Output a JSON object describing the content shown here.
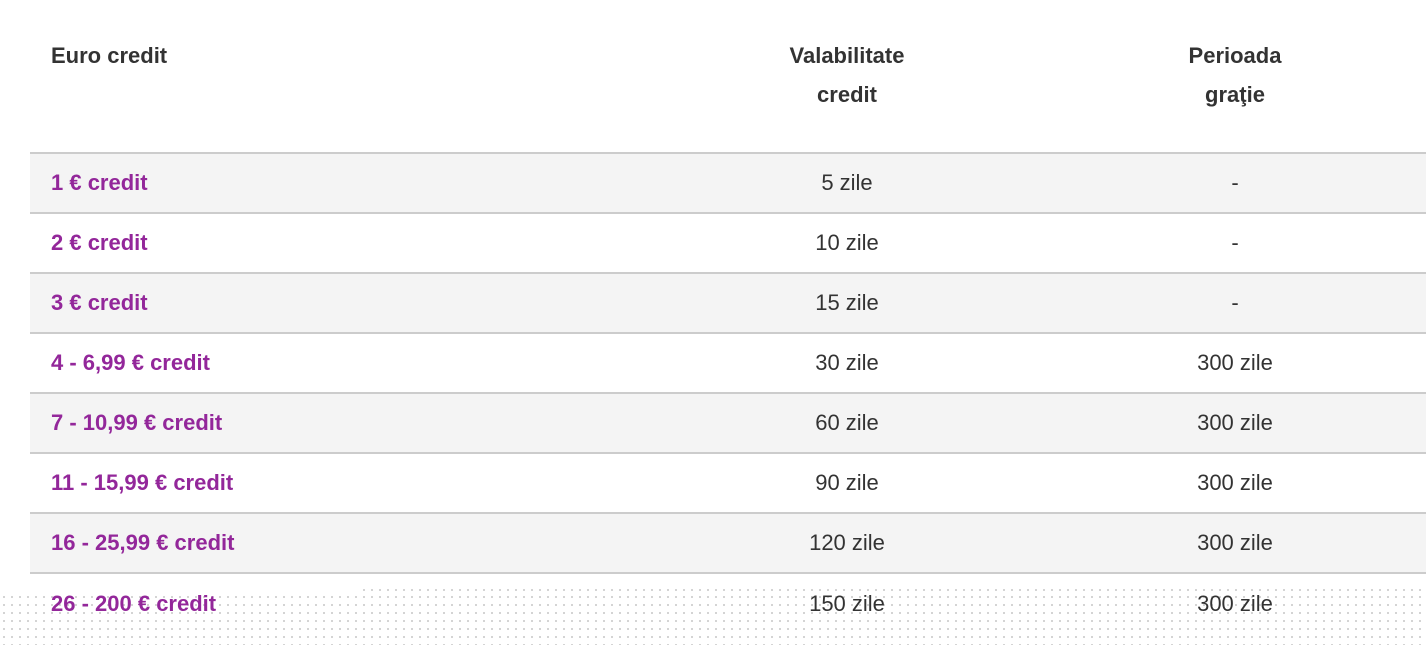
{
  "table": {
    "headers": [
      {
        "line1": "Euro credit",
        "line2": ""
      },
      {
        "line1": "Valabilitate",
        "line2": "credit"
      },
      {
        "line1": "Perioada",
        "line2": "graţie"
      }
    ],
    "rows": [
      [
        "1 € credit",
        "5 zile",
        "-"
      ],
      [
        "2 € credit",
        "10 zile",
        "-"
      ],
      [
        "3 € credit",
        "15 zile",
        "-"
      ],
      [
        "4 - 6,99 € credit",
        "30 zile",
        "300 zile"
      ],
      [
        "7 - 10,99 € credit",
        "60 zile",
        "300 zile"
      ],
      [
        "11 - 15,99 € credit",
        "90 zile",
        "300 zile"
      ],
      [
        "16 - 25,99 € credit",
        "120 zile",
        "300 zile"
      ],
      [
        "26 - 200 € credit",
        "150 zile",
        "300 zile"
      ]
    ]
  },
  "colors": {
    "accent": "#93279a",
    "stripe": "#f4f4f4",
    "border": "#cccccc"
  }
}
